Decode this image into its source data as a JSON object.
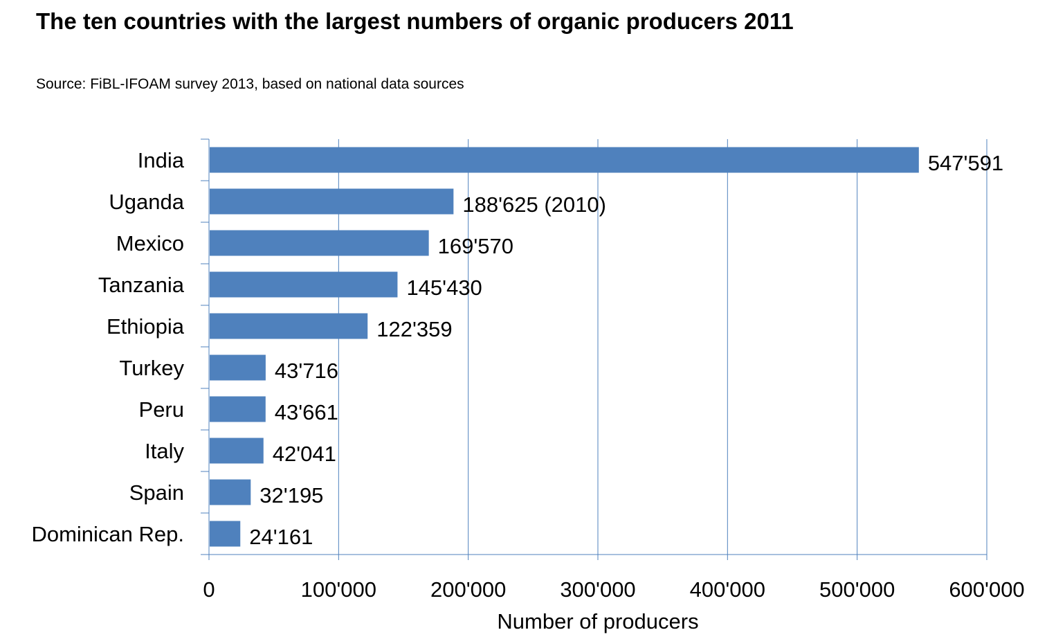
{
  "chart_data": {
    "type": "bar",
    "orientation": "horizontal",
    "title": "The ten countries with the largest numbers of organic producers 2011",
    "subtitle": "Source: FiBL-IFOAM survey 2013, based on national data sources",
    "xlabel": "Number of producers",
    "ylabel": "",
    "xlim": [
      0,
      600000
    ],
    "x_ticks": [
      0,
      100000,
      200000,
      300000,
      400000,
      500000,
      600000
    ],
    "x_tick_labels": [
      "0",
      "100'000",
      "200'000",
      "300'000",
      "400'000",
      "500'000",
      "600'000"
    ],
    "grid": "vertical",
    "legend": "none",
    "bar_color": "#4F81BD",
    "categories": [
      "India",
      "Uganda",
      "Mexico",
      "Tanzania",
      "Ethiopia",
      "Turkey",
      "Peru",
      "Italy",
      "Spain",
      "Dominican Rep."
    ],
    "values": [
      547591,
      188625,
      169570,
      145430,
      122359,
      43716,
      43661,
      42041,
      32195,
      24161
    ],
    "data_labels": [
      "547'591",
      "188'625 (2010)",
      "169'570",
      "145'430",
      "122'359",
      "43'716",
      "43'661",
      "42'041",
      "32'195",
      "24'161"
    ]
  }
}
